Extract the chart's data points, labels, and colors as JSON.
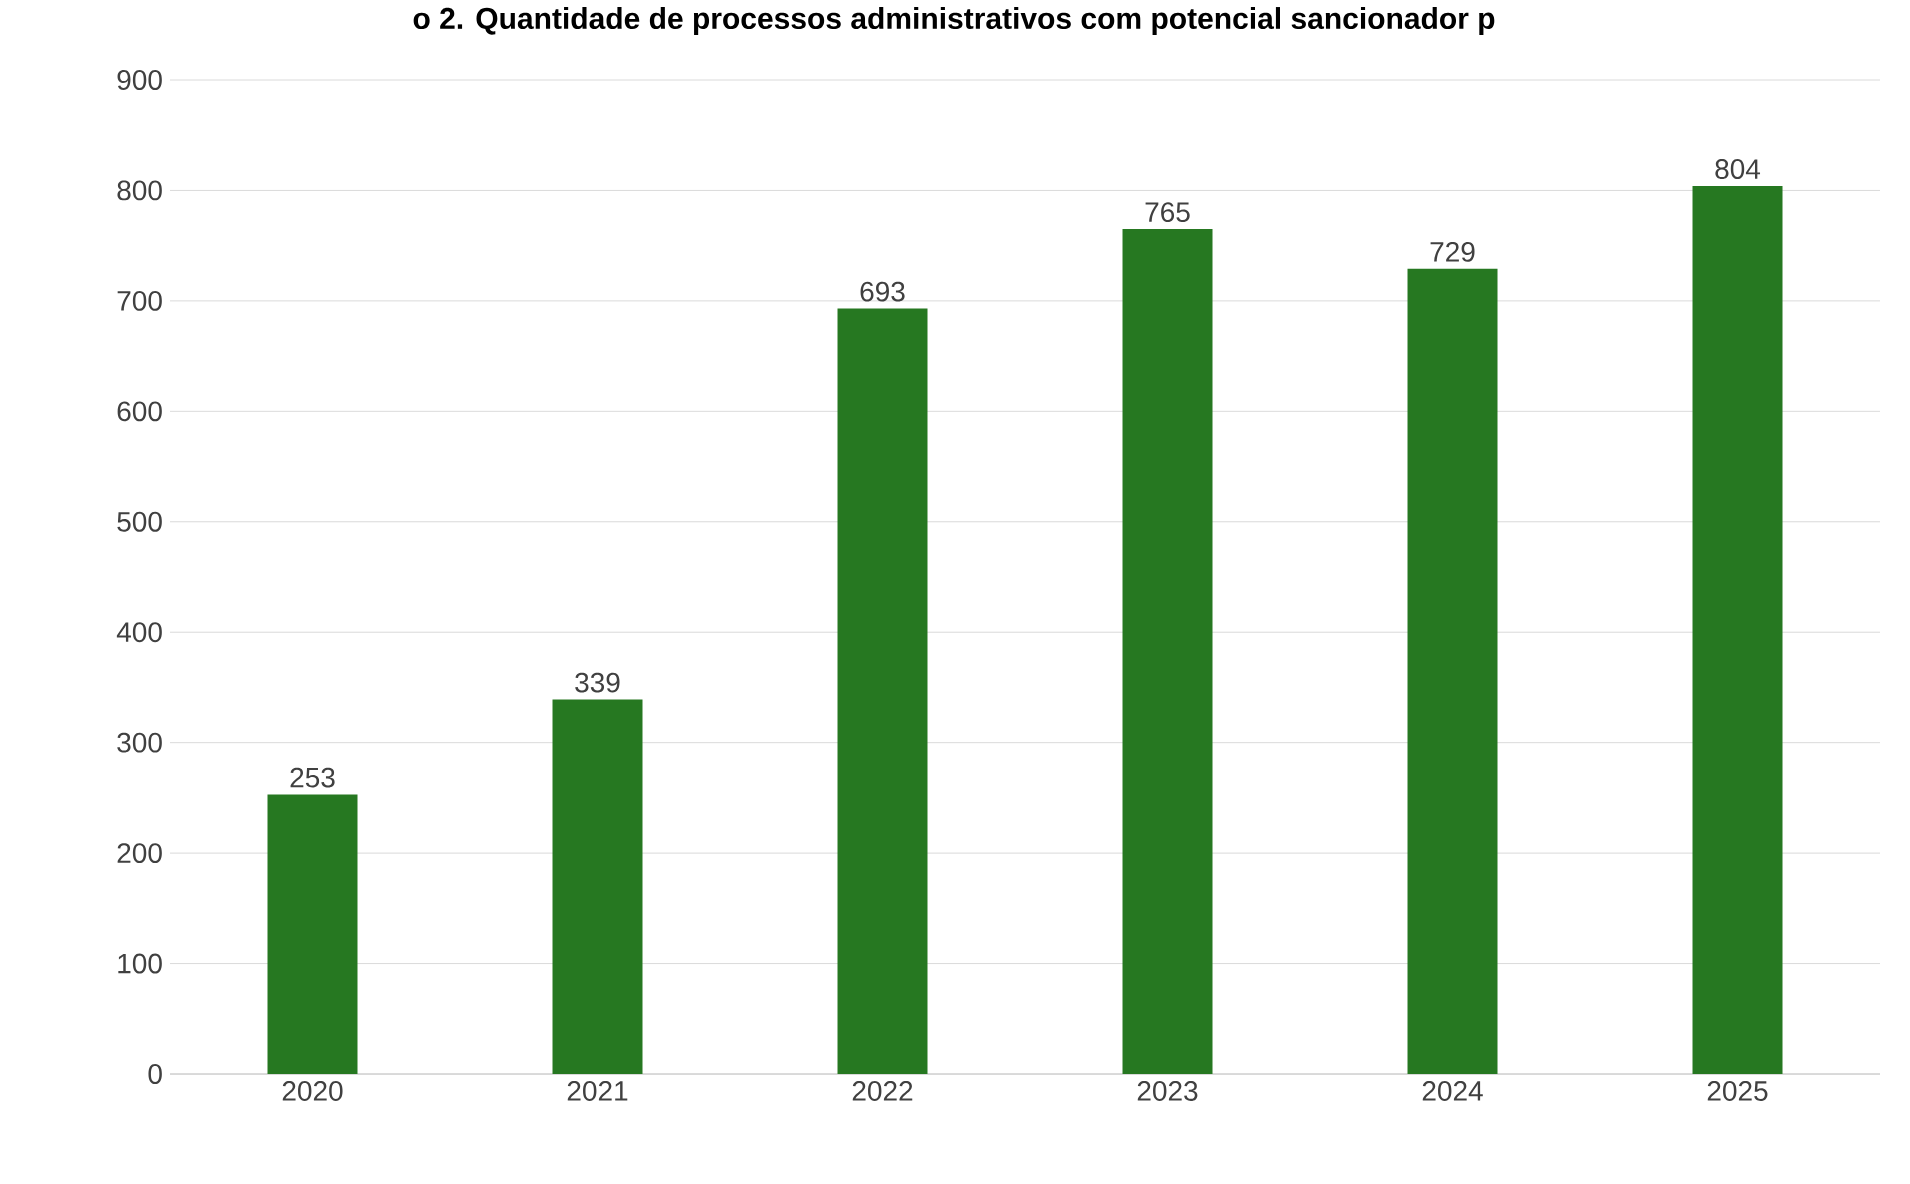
{
  "chart_data": {
    "type": "bar",
    "title": "o 2. Quantidade de processos administrativos com potencial sancionador p",
    "categories": [
      "2020",
      "2021",
      "2022",
      "2023",
      "2024",
      "2025"
    ],
    "values": [
      253,
      339,
      693,
      765,
      729,
      804
    ],
    "color": "#267821",
    "ylim": [
      0,
      900
    ],
    "yticks": [
      0,
      100,
      200,
      300,
      400,
      500,
      600,
      700,
      800,
      900
    ],
    "grid": "y",
    "data_labels": true
  }
}
